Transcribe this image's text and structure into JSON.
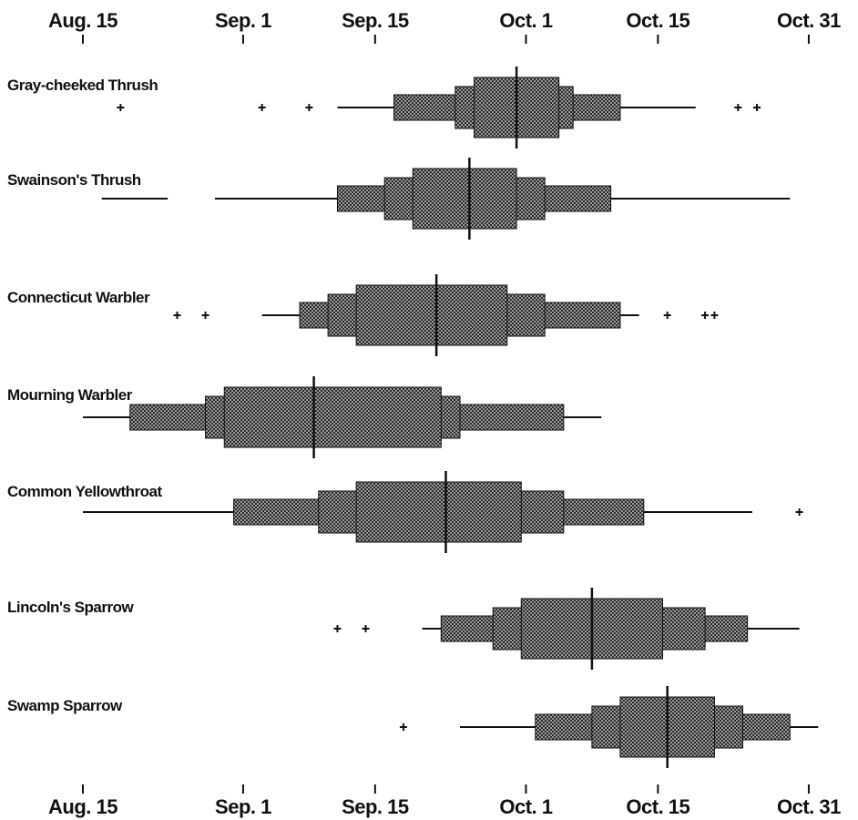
{
  "chart_data": {
    "type": "box",
    "x_ticks": [
      {
        "label": "Aug. 15",
        "day": 0
      },
      {
        "label": "Sep. 1",
        "day": 17
      },
      {
        "label": "Sep. 15",
        "day": 31
      },
      {
        "label": "Oct. 1",
        "day": 47
      },
      {
        "label": "Oct. 15",
        "day": 61
      },
      {
        "label": "Oct. 31",
        "day": 77
      }
    ],
    "xlim": [
      0,
      77
    ],
    "series": [
      {
        "name": "Gray-cheeked Thrush",
        "range_lines": [
          [
            27,
            65
          ]
        ],
        "tiers": [
          [
            33,
            57
          ],
          [
            39.5,
            52
          ],
          [
            41.5,
            50.5
          ]
        ],
        "median": 46,
        "outliers": [
          4,
          19,
          24,
          69.5,
          71.5
        ]
      },
      {
        "name": "Swainson's Thrush",
        "range_lines": [
          [
            2,
            9
          ],
          [
            14,
            75
          ]
        ],
        "tiers": [
          [
            27,
            56
          ],
          [
            32,
            49
          ],
          [
            35,
            46
          ]
        ],
        "median": 41,
        "outliers": []
      },
      {
        "name": "Connecticut Warbler",
        "range_lines": [
          [
            19,
            59
          ]
        ],
        "tiers": [
          [
            23,
            57
          ],
          [
            26,
            49
          ],
          [
            29,
            45
          ]
        ],
        "median": 37.5,
        "outliers": [
          10,
          13,
          62,
          66,
          67
        ]
      },
      {
        "name": "Mourning Warbler",
        "range_lines": [
          [
            0,
            55
          ]
        ],
        "tiers": [
          [
            5,
            51
          ],
          [
            13,
            40
          ],
          [
            15,
            38
          ]
        ],
        "median": 24.5,
        "outliers": []
      },
      {
        "name": "Common Yellowthroat",
        "range_lines": [
          [
            0,
            71
          ]
        ],
        "tiers": [
          [
            16,
            59.5
          ],
          [
            25,
            51
          ],
          [
            29,
            46.5
          ]
        ],
        "median": 38.5,
        "outliers": [
          76
        ]
      },
      {
        "name": "Lincoln's Sparrow",
        "range_lines": [
          [
            36,
            76
          ]
        ],
        "tiers": [
          [
            38,
            70.5
          ],
          [
            43.5,
            66
          ],
          [
            46.5,
            61.5
          ]
        ],
        "median": 54,
        "outliers": [
          27,
          30
        ]
      },
      {
        "name": "Swamp Sparrow",
        "range_lines": [
          [
            40,
            78
          ]
        ],
        "tiers": [
          [
            48,
            75
          ],
          [
            54,
            70
          ],
          [
            57,
            67
          ]
        ],
        "median": 62,
        "outliers": [
          34
        ]
      }
    ]
  }
}
